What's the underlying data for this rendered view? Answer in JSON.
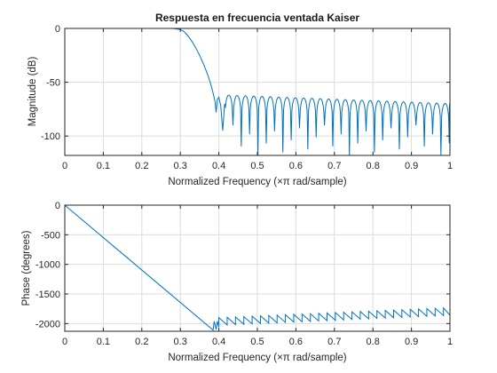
{
  "chart_data": [
    {
      "type": "line",
      "title": "Respuesta en frecuencia ventada Kaiser",
      "xlabel": "Normalized Frequency  (×π rad/sample)",
      "ylabel": "Magnitude (dB)",
      "xlim": [
        0,
        1
      ],
      "ylim": [
        -118,
        0
      ],
      "grid": true,
      "xticks": [
        0,
        0.1,
        0.2,
        0.3,
        0.4,
        0.5,
        0.6,
        0.7,
        0.8,
        0.9,
        1
      ],
      "xtick_labels": [
        "0",
        "0.1",
        "0.2",
        "0.3",
        "0.4",
        "0.5",
        "0.6",
        "0.7",
        "0.8",
        "0.9",
        "1"
      ],
      "yticks": [
        0,
        -50,
        -100
      ],
      "ytick_labels": [
        "0",
        "-50",
        "-100"
      ],
      "series": [
        {
          "color": "#0072bd",
          "x": [
            0,
            0.05,
            0.1,
            0.15,
            0.2,
            0.25,
            0.28,
            0.3,
            0.31,
            0.32,
            0.33,
            0.34,
            0.35,
            0.36,
            0.37,
            0.38,
            0.385,
            0.39,
            0.393,
            0.396,
            0.4,
            0.405,
            0.41,
            0.415
          ],
          "y": [
            0,
            0,
            0,
            0,
            0,
            0,
            0,
            -1,
            -3,
            -7,
            -12,
            -18,
            -25,
            -33,
            -42,
            -53,
            -60,
            -68,
            -78,
            -66,
            -64,
            -72,
            -95,
            -70
          ],
          "lobes": {
            "start": 0.415,
            "end": 1.0,
            "period": 0.0216,
            "peak_start": -62,
            "peak_end": -70,
            "null_depth": [
              -90,
              -118
            ]
          }
        }
      ]
    },
    {
      "type": "line",
      "title": "",
      "xlabel": "Normalized Frequency  (×π rad/sample)",
      "ylabel": "Phase (degrees)",
      "xlim": [
        0,
        1
      ],
      "ylim": [
        -2130,
        0
      ],
      "grid": true,
      "xticks": [
        0,
        0.1,
        0.2,
        0.3,
        0.4,
        0.5,
        0.6,
        0.7,
        0.8,
        0.9,
        1
      ],
      "xtick_labels": [
        "0",
        "0.1",
        "0.2",
        "0.3",
        "0.4",
        "0.5",
        "0.6",
        "0.7",
        "0.8",
        "0.9",
        "1"
      ],
      "yticks": [
        0,
        -500,
        -1000,
        -1500,
        -2000
      ],
      "ytick_labels": [
        "0",
        "-500",
        "-1000",
        "-1500",
        "-2000"
      ],
      "series": [
        {
          "color": "#0072bd",
          "x": [
            0,
            0.385,
            0.388,
            0.393,
            0.396,
            0.4
          ],
          "y": [
            0,
            -2110,
            -1960,
            -2100,
            -1960,
            -2060
          ],
          "sawtooth": {
            "start": 0.4,
            "end": 1.0,
            "period": 0.0216,
            "high_start": -1900,
            "low_start": -2030,
            "high_end": -1730,
            "low_end": -1860
          }
        }
      ]
    }
  ]
}
